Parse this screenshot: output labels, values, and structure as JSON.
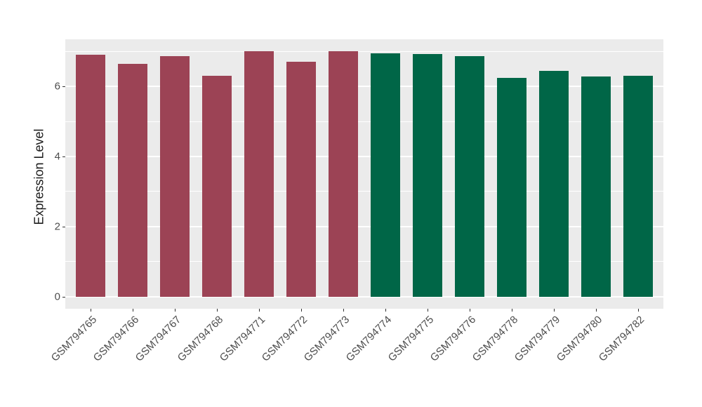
{
  "chart_data": {
    "type": "bar",
    "title": "",
    "xlabel": "",
    "ylabel": "Expression Level",
    "categories": [
      "GSM794765",
      "GSM794766",
      "GSM794767",
      "GSM794768",
      "GSM794771",
      "GSM794772",
      "GSM794773",
      "GSM794774",
      "GSM794775",
      "GSM794776",
      "GSM794778",
      "GSM794779",
      "GSM794780",
      "GSM794782"
    ],
    "values": [
      6.9,
      6.65,
      6.87,
      6.31,
      7.0,
      6.7,
      7.0,
      6.95,
      6.93,
      6.87,
      6.25,
      6.44,
      6.29,
      6.31
    ],
    "bar_group_index": [
      0,
      0,
      0,
      0,
      0,
      0,
      0,
      1,
      1,
      1,
      1,
      1,
      1,
      1
    ],
    "group_colors": [
      "#9C4355",
      "#006647"
    ],
    "y_ticks": [
      0,
      2,
      4,
      6
    ],
    "y_minor_gridlines": [
      1,
      3,
      5,
      7
    ],
    "ylim": [
      -0.35,
      7.35
    ],
    "bar_width_fraction": 0.7,
    "x_domain_pad": 0.6,
    "x_label_rotation_deg": 45,
    "grid": true,
    "legend": "none",
    "colors": {
      "panel_background": "#EBEBEB",
      "gridline": "#FFFFFF",
      "tick_mark": "#333333",
      "tick_label": "#4D4D4D",
      "axis_title": "#1A1A1A",
      "figure_background": "#FFFFFF"
    }
  }
}
